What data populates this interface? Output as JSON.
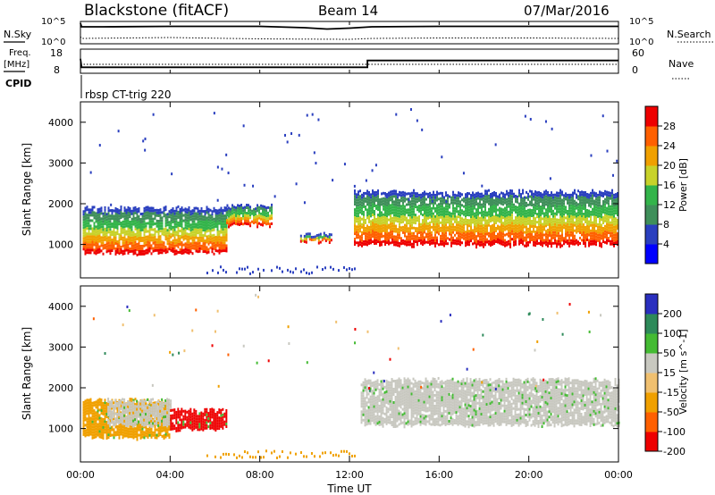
{
  "header": {
    "station": "Blackstone (fitACF)",
    "beam": "Beam 14",
    "date": "07/Mar/2016"
  },
  "noise_panel": {
    "left_label": "N.Sky",
    "right_label": "N.Search",
    "left_ticks": [
      "10^5",
      "10^0"
    ],
    "right_ticks": [
      "10^5",
      "10^0"
    ]
  },
  "freq_panel": {
    "left_label_line1": "Freq.",
    "left_label_line2": "[MHz]",
    "right_label": "Nave",
    "left_ticks": [
      "18",
      "8"
    ],
    "right_ticks": [
      "60",
      "0"
    ]
  },
  "cpid": {
    "label": "CPID",
    "text": "rbsp CT-trig 220"
  },
  "time_axis": {
    "label": "Time UT",
    "ticks": [
      "00:00",
      "04:00",
      "08:00",
      "12:00",
      "16:00",
      "20:00",
      "00:00"
    ]
  },
  "colors": {
    "power": [
      "#0000ff",
      "#2a3fbf",
      "#3f8f5a",
      "#33b44a",
      "#c8d22a",
      "#f0a000",
      "#ff6000",
      "#ee0000"
    ],
    "velocity": [
      "#ee0000",
      "#ff6000",
      "#f0a000",
      "#f0c070",
      "#c8c8c0",
      "#44bb33",
      "#2e8a5a",
      "#2a2fbf"
    ]
  },
  "chart_data": [
    {
      "type": "line",
      "title": "",
      "xlabel": "",
      "ylabel": "N.Sky",
      "x_range_hours": [
        0,
        24
      ],
      "ylim_log10": [
        0,
        5
      ],
      "series": [
        {
          "name": "N.Sky",
          "style": "solid",
          "x": [
            0.0,
            0.05,
            1.0,
            4.0,
            8.0,
            10.0,
            11.0,
            12.0,
            13.0,
            16.0,
            20.0,
            24.0
          ],
          "y_log10": [
            4.6,
            3.8,
            3.8,
            3.9,
            3.9,
            3.6,
            3.3,
            3.5,
            3.8,
            3.9,
            3.9,
            3.9
          ]
        },
        {
          "name": "N.Search",
          "style": "dotted",
          "x": [
            0.0,
            0.05,
            4.0,
            8.0,
            12.0,
            13.0,
            16.0,
            20.0,
            24.0
          ],
          "y_log10": [
            1.6,
            1.2,
            1.4,
            1.1,
            1.0,
            1.2,
            1.3,
            1.3,
            1.2
          ]
        }
      ]
    },
    {
      "type": "line",
      "title": "",
      "xlabel": "",
      "ylabel": "Freq. [MHz]",
      "x_range_hours": [
        0,
        24
      ],
      "ylim": [
        8,
        18
      ],
      "y2lim": [
        0,
        60
      ],
      "series": [
        {
          "name": "Freq.",
          "style": "solid",
          "x": [
            0.0,
            0.05,
            12.8,
            12.8,
            24.0
          ],
          "y": [
            14.0,
            10.5,
            10.5,
            13.3,
            13.3
          ]
        },
        {
          "name": "Nave",
          "style": "dotted",
          "x": [
            0.0,
            24.0
          ],
          "y": [
            11.7,
            11.7
          ]
        }
      ]
    },
    {
      "type": "heatmap",
      "title": "",
      "xlabel": "",
      "ylabel": "Slant Range [km]",
      "x_range_hours": [
        0,
        24
      ],
      "ylim": [
        180,
        4500
      ],
      "yticks": [
        1000,
        2000,
        3000,
        4000
      ],
      "colorbar_label": "Power [dB]",
      "colorbar_ticks": [
        "4",
        "8",
        "12",
        "16",
        "20",
        "24",
        "28"
      ],
      "bands": [
        {
          "x_hours": [
            0.1,
            6.5
          ],
          "range_km": [
            800,
            1900
          ]
        },
        {
          "x_hours": [
            6.5,
            8.5
          ],
          "range_km": [
            1500,
            1950
          ]
        },
        {
          "x_hours": [
            9.8,
            11.2
          ],
          "range_km": [
            1100,
            1250
          ]
        },
        {
          "x_hours": [
            12.2,
            24.0
          ],
          "range_km": [
            1000,
            2300
          ]
        }
      ]
    },
    {
      "type": "heatmap",
      "title": "",
      "xlabel": "Time UT",
      "ylabel": "Slant Range [km]",
      "x_range_hours": [
        0,
        24
      ],
      "ylim": [
        180,
        4500
      ],
      "yticks": [
        1000,
        2000,
        3000,
        4000
      ],
      "colorbar_label": "Velocity [m s^-1]",
      "colorbar_ticks": [
        "200",
        "100",
        "50",
        "15",
        "-15",
        "-50",
        "-100",
        "-200"
      ],
      "bands": [
        {
          "x_hours": [
            0.1,
            4.0
          ],
          "range_km": [
            800,
            1700
          ],
          "velocity": "orange"
        },
        {
          "x_hours": [
            1.2,
            4.0
          ],
          "range_km": [
            1100,
            1700
          ],
          "velocity": "grey"
        },
        {
          "x_hours": [
            4.0,
            6.5
          ],
          "range_km": [
            1000,
            1450
          ],
          "velocity": "red"
        },
        {
          "x_hours": [
            12.5,
            24.0
          ],
          "range_km": [
            1100,
            2200
          ],
          "velocity": "grey"
        }
      ]
    }
  ]
}
